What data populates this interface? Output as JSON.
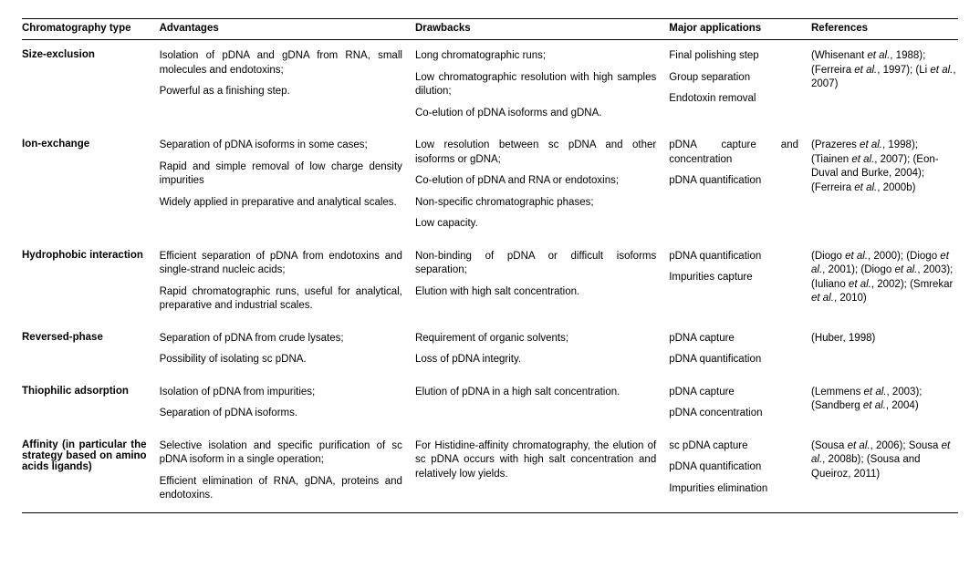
{
  "columns": [
    "Chromatography type",
    "Advantages",
    "Drawbacks",
    "Major applications",
    "References"
  ],
  "rows": [
    {
      "type": "Size-exclusion",
      "advantages": [
        "Isolation of pDNA and gDNA from RNA, small molecules and endotoxins;",
        "Powerful as a finishing step."
      ],
      "drawbacks": [
        "Long chromatographic runs;",
        "Low chromatographic resolution with high samples dilution;",
        "Co-elution of pDNA isoforms and gDNA."
      ],
      "applications": [
        "Final polishing step",
        "Group separation",
        "Endotoxin removal"
      ],
      "references": [
        {
          "pre": "(Whisenant ",
          "ital": "et al.",
          "post": ", 1988); "
        },
        {
          "pre": "(Ferreira ",
          "ital": "et al.",
          "post": ", 1997); "
        },
        {
          "pre": "(Li ",
          "ital": "et al.",
          "post": ", 2007)"
        }
      ]
    },
    {
      "type": "Ion-exchange",
      "advantages": [
        "Separation of pDNA isoforms in some cases;",
        "Rapid and simple removal of low charge density impurities",
        "Widely applied in preparative and analytical scales."
      ],
      "drawbacks": [
        "Low resolution between sc pDNA and other isoforms or gDNA;",
        "Co-elution of pDNA and RNA or endotoxins;",
        "Non-specific chromatographic phases;",
        "Low capacity."
      ],
      "applications": [
        "pDNA capture and concentration",
        "pDNA quantification"
      ],
      "references": [
        {
          "pre": "(Prazeres ",
          "ital": "et al.",
          "post": ", 1998); "
        },
        {
          "pre": "(Tiainen ",
          "ital": "et al.",
          "post": ", 2007); "
        },
        {
          "pre": "(Eon-Duval and Burke, 2004); ",
          "ital": "",
          "post": ""
        },
        {
          "pre": "(Ferreira ",
          "ital": "et al.",
          "post": ", 2000b)"
        }
      ]
    },
    {
      "type": "Hydrophobic interaction",
      "advantages": [
        "Efficient separation of pDNA from endotoxins and single-strand nucleic acids;",
        "Rapid chromatographic runs, useful for analytical, preparative and industrial scales."
      ],
      "drawbacks": [
        "Non-binding of pDNA or difficult isoforms separation;",
        "Elution with high salt concentration."
      ],
      "applications": [
        "pDNA quantification",
        "Impurities capture"
      ],
      "references": [
        {
          "pre": "(Diogo ",
          "ital": "et al.",
          "post": ", 2000); "
        },
        {
          "pre": "(Diogo ",
          "ital": "et al.",
          "post": ", 2001); "
        },
        {
          "pre": "(Diogo ",
          "ital": "et al.",
          "post": ", 2003); "
        },
        {
          "pre": "(Iuliano ",
          "ital": "et al.",
          "post": ", 2002); "
        },
        {
          "pre": "(Smrekar ",
          "ital": "et al.",
          "post": ", 2010)"
        }
      ]
    },
    {
      "type": "Reversed-phase",
      "advantages": [
        "Separation of pDNA from crude lysates;",
        "Possibility of isolating sc pDNA."
      ],
      "drawbacks": [
        "Requirement of organic solvents;",
        "Loss of pDNA integrity."
      ],
      "applications": [
        "pDNA capture",
        "pDNA quantification"
      ],
      "references": [
        {
          "pre": "(Huber, 1998)",
          "ital": "",
          "post": ""
        }
      ]
    },
    {
      "type": "Thiophilic adsorption",
      "advantages": [
        "Isolation of pDNA from impurities;",
        "Separation of pDNA isoforms."
      ],
      "drawbacks": [
        "Elution of pDNA in a high salt concentration."
      ],
      "applications": [
        "pDNA capture",
        "pDNA concentration"
      ],
      "references": [
        {
          "pre": "(Lemmens ",
          "ital": "et al.",
          "post": ", 2003); "
        },
        {
          "pre": "(Sandberg ",
          "ital": "et al.",
          "post": ", 2004)"
        }
      ]
    },
    {
      "type": "Affinity (in particular the strategy based on amino acids ligands)",
      "advantages": [
        "Selective isolation and specific purification of sc pDNA isoform in a single operation;",
        "Efficient elimination of RNA, gDNA, proteins and endotoxins."
      ],
      "drawbacks": [
        "For Histidine-affinity chromatography, the elution of sc pDNA occurs with high salt concentration and relatively low yields."
      ],
      "applications": [
        "sc pDNA capture",
        "pDNA quantification",
        "Impurities elimination"
      ],
      "references": [
        {
          "pre": "(Sousa ",
          "ital": "et al.",
          "post": ", 2006); "
        },
        {
          "pre": "Sousa ",
          "ital": "et al.",
          "post": ", 2008b); "
        },
        {
          "pre": "(Sousa and Queiroz, 2011)",
          "ital": "",
          "post": ""
        }
      ]
    }
  ]
}
